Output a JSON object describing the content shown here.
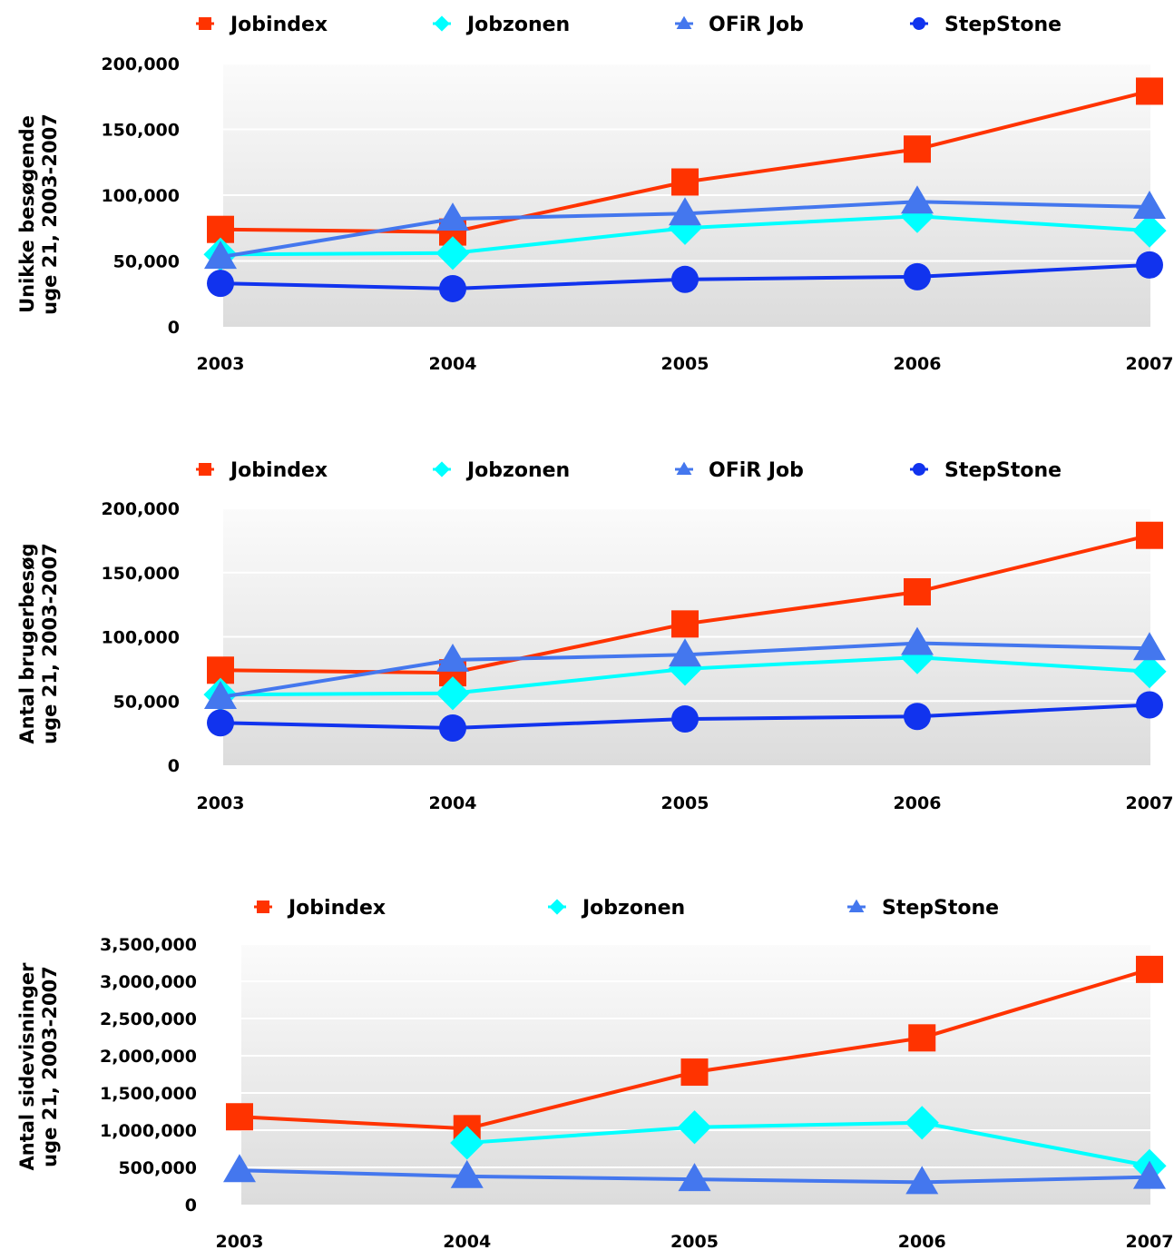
{
  "chart_data": [
    {
      "type": "line",
      "title": "",
      "xlabel": "",
      "ylabel": [
        "Unikke besøgende",
        "uge 21, 2003-2007"
      ],
      "categories": [
        "2003",
        "2004",
        "2005",
        "2006",
        "2007"
      ],
      "ylim": [
        0,
        200000
      ],
      "yticks": [
        "0",
        "50,000",
        "100,000",
        "150,000",
        "200,000"
      ],
      "ytick_values": [
        0,
        50000,
        100000,
        150000,
        200000
      ],
      "legend_position": "top",
      "grid": true,
      "series": [
        {
          "name": "Jobindex",
          "marker": "square",
          "color": "#ff3300",
          "values": [
            74000,
            72000,
            110000,
            135000,
            179000
          ]
        },
        {
          "name": "Jobzonen",
          "marker": "diamond",
          "color": "#00ffff",
          "values": [
            55000,
            56000,
            75000,
            84000,
            73000
          ]
        },
        {
          "name": "OFiR Job",
          "marker": "triangle",
          "color": "#4477ee",
          "values": [
            53000,
            82000,
            86000,
            95000,
            91000
          ]
        },
        {
          "name": "StepStone",
          "marker": "circle",
          "color": "#1133ee",
          "values": [
            33000,
            29000,
            36000,
            38000,
            47000
          ]
        }
      ]
    },
    {
      "type": "line",
      "title": "",
      "xlabel": "",
      "ylabel": [
        "Antal brugerbesøg",
        "uge 21, 2003-2007"
      ],
      "categories": [
        "2003",
        "2004",
        "2005",
        "2006",
        "2007"
      ],
      "ylim": [
        0,
        200000
      ],
      "yticks": [
        "0",
        "50,000",
        "100,000",
        "150,000",
        "200,000"
      ],
      "ytick_values": [
        0,
        50000,
        100000,
        150000,
        200000
      ],
      "legend_position": "top",
      "grid": true,
      "series": [
        {
          "name": "Jobindex",
          "marker": "square",
          "color": "#ff3300",
          "values": [
            74000,
            72000,
            110000,
            135000,
            179000
          ]
        },
        {
          "name": "Jobzonen",
          "marker": "diamond",
          "color": "#00ffff",
          "values": [
            55000,
            56000,
            75000,
            84000,
            73000
          ]
        },
        {
          "name": "OFiR Job",
          "marker": "triangle",
          "color": "#4477ee",
          "values": [
            53000,
            82000,
            86000,
            95000,
            91000
          ]
        },
        {
          "name": "StepStone",
          "marker": "circle",
          "color": "#1133ee",
          "values": [
            33000,
            29000,
            36000,
            38000,
            47000
          ]
        }
      ]
    },
    {
      "type": "line",
      "title": "",
      "xlabel": "",
      "ylabel": [
        "Antal sidevisninger",
        "uge 21, 2003-2007"
      ],
      "categories": [
        "2003",
        "2004",
        "2005",
        "2006",
        "2007"
      ],
      "ylim": [
        0,
        3500000
      ],
      "yticks": [
        "0",
        "500,000",
        "1,000,000",
        "1,500,000",
        "2,000,000",
        "2,500,000",
        "3,000,000",
        "3,500,000"
      ],
      "ytick_values": [
        0,
        500000,
        1000000,
        1500000,
        2000000,
        2500000,
        3000000,
        3500000
      ],
      "legend_position": "top",
      "grid": true,
      "series": [
        {
          "name": "Jobindex",
          "marker": "square",
          "color": "#ff3300",
          "values": [
            1180000,
            1020000,
            1780000,
            2240000,
            3160000
          ]
        },
        {
          "name": "Jobzonen",
          "marker": "diamond",
          "color": "#00ffff",
          "values": [
            null,
            830000,
            1040000,
            1100000,
            520000
          ]
        },
        {
          "name": "StepStone",
          "marker": "triangle",
          "color": "#4477ee",
          "values": [
            460000,
            380000,
            340000,
            300000,
            370000
          ]
        }
      ]
    }
  ]
}
